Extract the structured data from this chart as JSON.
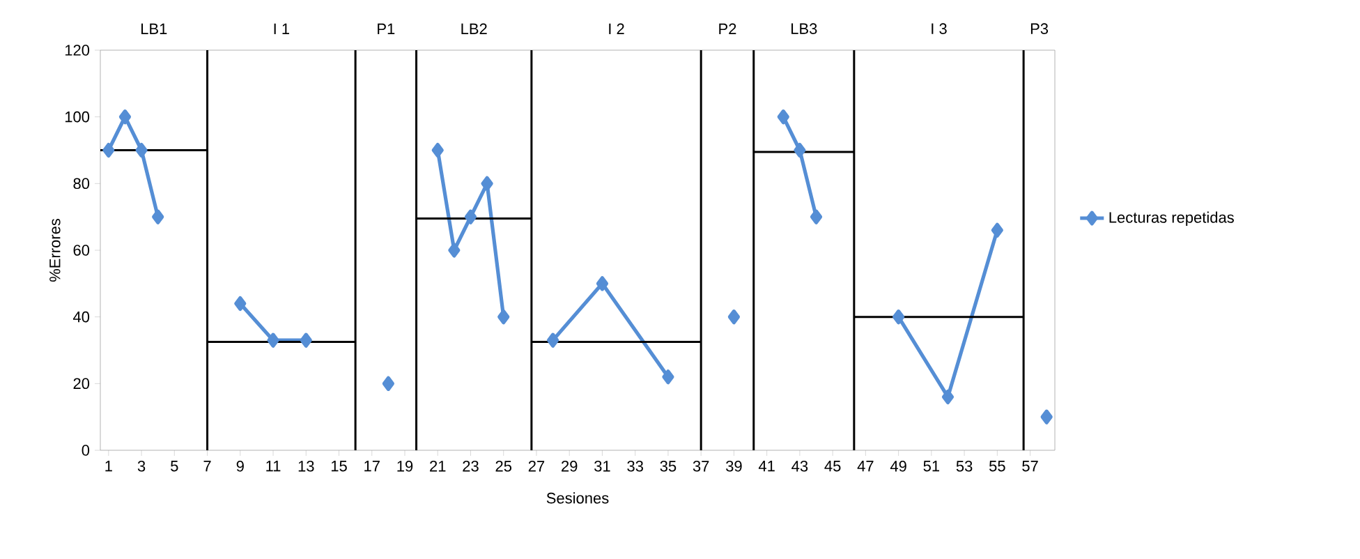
{
  "chart_data": {
    "type": "line",
    "xlabel": "Sesiones",
    "ylabel": "%Errores",
    "xlim": [
      0.5,
      58.5
    ],
    "ylim": [
      0,
      120
    ],
    "xticks": [
      1,
      3,
      5,
      7,
      9,
      11,
      13,
      15,
      17,
      19,
      21,
      23,
      25,
      27,
      29,
      31,
      33,
      35,
      37,
      39,
      41,
      43,
      45,
      47,
      49,
      51,
      53,
      55,
      57
    ],
    "yticks": [
      0,
      20,
      40,
      60,
      80,
      100,
      120
    ],
    "marker": "diamond",
    "grid": false,
    "legend": "right",
    "series": [
      {
        "name": "Lecturas repetidas",
        "color": "#558ed5",
        "x": [
          1,
          2,
          3,
          4,
          5,
          9,
          11,
          13,
          14,
          18,
          19,
          21,
          22,
          23,
          24,
          25,
          26,
          28,
          31,
          35,
          36,
          39,
          40,
          42,
          43,
          44,
          45,
          49,
          52,
          55,
          56,
          58
        ],
        "values": [
          90,
          100,
          90,
          70,
          null,
          44,
          33,
          33,
          null,
          20,
          null,
          90,
          60,
          70,
          80,
          40,
          null,
          33,
          50,
          22,
          null,
          40,
          null,
          100,
          90,
          70,
          null,
          40,
          16,
          66,
          null,
          10
        ]
      },
      {
        "color": "#000000",
        "marker": "none",
        "x": [
          0.5,
          7
        ],
        "values": [
          90,
          90
        ]
      },
      {
        "color": "#000000",
        "marker": "none",
        "x": [
          7,
          16
        ],
        "values": [
          32.5,
          32.5
        ]
      },
      {
        "color": "#000000",
        "marker": "none",
        "x": [
          19.7,
          26.7
        ],
        "values": [
          69.5,
          69.5
        ]
      },
      {
        "color": "#000000",
        "marker": "none",
        "x": [
          26.7,
          37
        ],
        "values": [
          32.5,
          32.5
        ]
      },
      {
        "color": "#000000",
        "marker": "none",
        "x": [
          40.2,
          46.3
        ],
        "values": [
          89.5,
          89.5
        ]
      },
      {
        "color": "#000000",
        "marker": "none",
        "x": [
          46.3,
          56.6
        ],
        "values": [
          40,
          40
        ]
      }
    ],
    "ref_lines": [
      {
        "axis": "x",
        "value": 7,
        "color": "#000000"
      },
      {
        "axis": "x",
        "value": 16,
        "color": "#000000"
      },
      {
        "axis": "x",
        "value": 19.7,
        "color": "#000000"
      },
      {
        "axis": "x",
        "value": 26.7,
        "color": "#000000"
      },
      {
        "axis": "x",
        "value": 37,
        "color": "#000000"
      },
      {
        "axis": "x",
        "value": 40.2,
        "color": "#000000"
      },
      {
        "axis": "x",
        "value": 46.3,
        "color": "#000000"
      },
      {
        "axis": "x",
        "value": 56.6,
        "color": "#000000"
      }
    ],
    "annotations": [
      "LB1",
      "I 1",
      "P1",
      "LB2",
      "I 2",
      "P2",
      "LB3",
      "I 3",
      "P3"
    ]
  }
}
